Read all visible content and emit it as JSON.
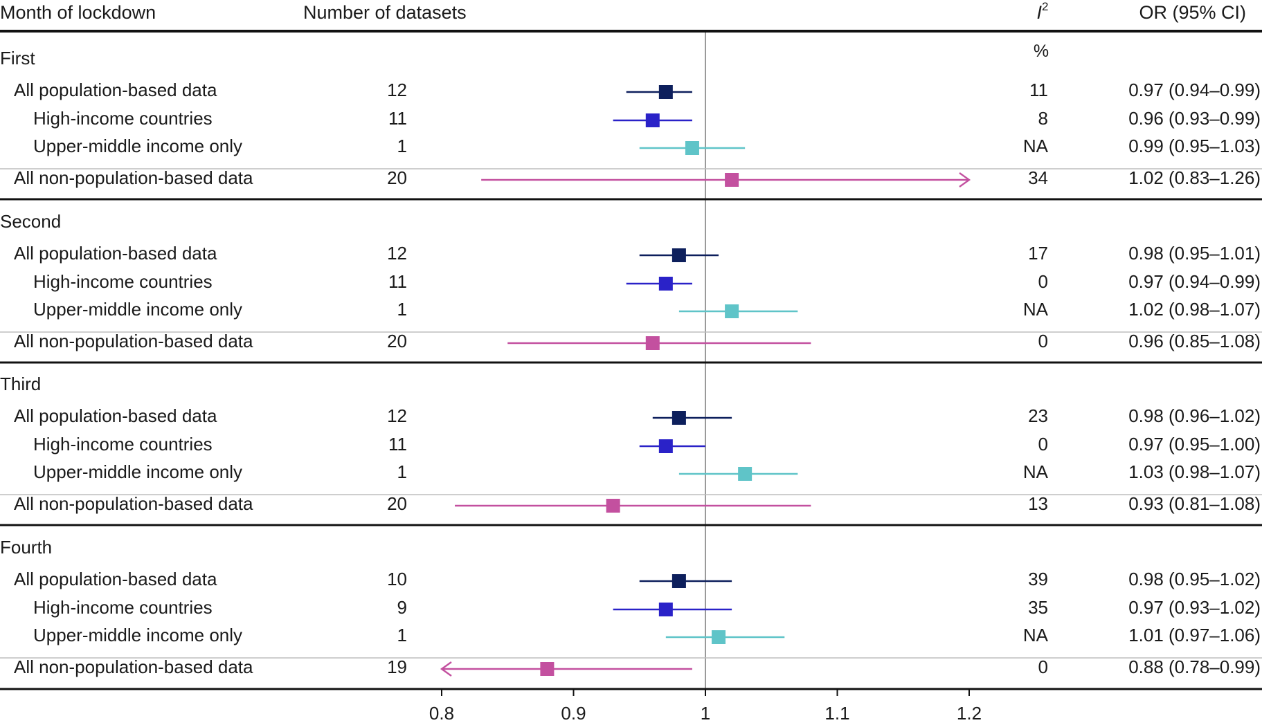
{
  "headers": {
    "month": "Month of lockdown",
    "datasets": "Number of datasets",
    "i2": "I",
    "i2_sup": "2",
    "i2_unit": "%",
    "or": "OR (95% CI)"
  },
  "colors": {
    "all_population": "#0d1f5c",
    "high_income": "#2a22c8",
    "upper_middle": "#5fc4c8",
    "non_population": "#c3509f",
    "reference_line": "#9a9a9a",
    "rule": "#111111"
  },
  "chart_data": {
    "type": "forest",
    "xlabel": "",
    "xlim": [
      0.8,
      1.2
    ],
    "xticks": [
      "0.8",
      "0.9",
      "1",
      "1.1",
      "1.2"
    ],
    "xtick_values": [
      0.8,
      0.9,
      1.0,
      1.1,
      1.2
    ],
    "reference": 1.0,
    "groups": [
      {
        "name": "First",
        "rows": [
          {
            "label": "All population-based data",
            "kind": "all_population",
            "n": "12",
            "i2": "11",
            "or_text": "0.97 (0.94–0.99)",
            "or": 0.97,
            "lo": 0.94,
            "hi": 0.99
          },
          {
            "label": "High-income countries",
            "kind": "high_income",
            "n": "11",
            "i2": "8",
            "or_text": "0.96 (0.93–0.99)",
            "or": 0.96,
            "lo": 0.93,
            "hi": 0.99
          },
          {
            "label": "Upper-middle income only",
            "kind": "upper_middle",
            "n": "1",
            "i2": "NA",
            "or_text": "0.99 (0.95–1.03)",
            "or": 0.99,
            "lo": 0.95,
            "hi": 1.03
          },
          {
            "label": "All non-population-based data",
            "kind": "non_population",
            "n": "20",
            "i2": "34",
            "or_text": "1.02 (0.83–1.26)",
            "or": 1.02,
            "lo": 0.83,
            "hi": 1.26
          }
        ]
      },
      {
        "name": "Second",
        "rows": [
          {
            "label": "All population-based data",
            "kind": "all_population",
            "n": "12",
            "i2": "17",
            "or_text": "0.98 (0.95–1.01)",
            "or": 0.98,
            "lo": 0.95,
            "hi": 1.01
          },
          {
            "label": "High-income countries",
            "kind": "high_income",
            "n": "11",
            "i2": "0",
            "or_text": "0.97 (0.94–0.99)",
            "or": 0.97,
            "lo": 0.94,
            "hi": 0.99
          },
          {
            "label": "Upper-middle income only",
            "kind": "upper_middle",
            "n": "1",
            "i2": "NA",
            "or_text": "1.02 (0.98–1.07)",
            "or": 1.02,
            "lo": 0.98,
            "hi": 1.07
          },
          {
            "label": "All non-population-based data",
            "kind": "non_population",
            "n": "20",
            "i2": "0",
            "or_text": "0.96 (0.85–1.08)",
            "or": 0.96,
            "lo": 0.85,
            "hi": 1.08
          }
        ]
      },
      {
        "name": "Third",
        "rows": [
          {
            "label": "All population-based data",
            "kind": "all_population",
            "n": "12",
            "i2": "23",
            "or_text": "0.98 (0.96–1.02)",
            "or": 0.98,
            "lo": 0.96,
            "hi": 1.02
          },
          {
            "label": "High-income countries",
            "kind": "high_income",
            "n": "11",
            "i2": "0",
            "or_text": "0.97 (0.95–1.00)",
            "or": 0.97,
            "lo": 0.95,
            "hi": 1.0
          },
          {
            "label": "Upper-middle income only",
            "kind": "upper_middle",
            "n": "1",
            "i2": "NA",
            "or_text": "1.03 (0.98–1.07)",
            "or": 1.03,
            "lo": 0.98,
            "hi": 1.07
          },
          {
            "label": "All non-population-based data",
            "kind": "non_population",
            "n": "20",
            "i2": "13",
            "or_text": "0.93 (0.81–1.08)",
            "or": 0.93,
            "lo": 0.81,
            "hi": 1.08
          }
        ]
      },
      {
        "name": "Fourth",
        "rows": [
          {
            "label": "All population-based data",
            "kind": "all_population",
            "n": "10",
            "i2": "39",
            "or_text": "0.98 (0.95–1.02)",
            "or": 0.98,
            "lo": 0.95,
            "hi": 1.02
          },
          {
            "label": "High-income countries",
            "kind": "high_income",
            "n": "9",
            "i2": "35",
            "or_text": "0.97 (0.93–1.02)",
            "or": 0.97,
            "lo": 0.93,
            "hi": 1.02
          },
          {
            "label": "Upper-middle income only",
            "kind": "upper_middle",
            "n": "1",
            "i2": "NA",
            "or_text": "1.01 (0.97–1.06)",
            "or": 1.01,
            "lo": 0.97,
            "hi": 1.06
          },
          {
            "label": "All non-population-based data",
            "kind": "non_population",
            "n": "19",
            "i2": "0",
            "or_text": "0.88 (0.78–0.99)",
            "or": 0.88,
            "lo": 0.78,
            "hi": 0.99
          }
        ]
      }
    ]
  }
}
